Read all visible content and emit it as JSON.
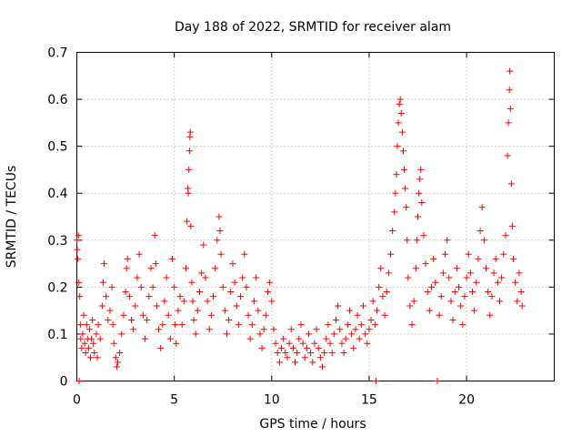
{
  "chart_data": {
    "type": "scatter",
    "title": "Day 188 of 2022, SRMTID for receiver alam",
    "xlabel": "GPS time / hours",
    "ylabel": "SRMTID / TECUs",
    "xlim": [
      0,
      24.5
    ],
    "ylim": [
      0,
      0.7
    ],
    "xticks": [
      0,
      5,
      10,
      15,
      20
    ],
    "xtick_labels": [
      "0",
      "5",
      "10",
      "15",
      "20"
    ],
    "yticks": [
      0,
      0.1,
      0.2,
      0.3,
      0.4,
      0.5,
      0.6,
      0.7
    ],
    "ytick_labels": [
      "0",
      "0.1",
      "0.2",
      "0.3",
      "0.4",
      "0.5",
      "0.6",
      "0.7"
    ],
    "grid": true,
    "marker": "+",
    "color": "#ff0000",
    "series": [
      {
        "name": "SRMTID",
        "points": [
          [
            0.0,
            0.3
          ],
          [
            0.02,
            0.28
          ],
          [
            0.05,
            0.26
          ],
          [
            0.08,
            0.31
          ],
          [
            0.1,
            0.21
          ],
          [
            0.12,
            0.0
          ],
          [
            0.15,
            0.18
          ],
          [
            0.18,
            0.12
          ],
          [
            0.2,
            0.09
          ],
          [
            0.25,
            0.07
          ],
          [
            0.3,
            0.1
          ],
          [
            0.35,
            0.14
          ],
          [
            0.4,
            0.08
          ],
          [
            0.45,
            0.06
          ],
          [
            0.5,
            0.12
          ],
          [
            0.55,
            0.09
          ],
          [
            0.6,
            0.07
          ],
          [
            0.65,
            0.11
          ],
          [
            0.7,
            0.05
          ],
          [
            0.75,
            0.09
          ],
          [
            0.8,
            0.13
          ],
          [
            0.85,
            0.08
          ],
          [
            0.9,
            0.06
          ],
          [
            1.0,
            0.1
          ],
          [
            1.05,
            0.05
          ],
          [
            1.1,
            0.12
          ],
          [
            1.2,
            0.09
          ],
          [
            1.3,
            0.16
          ],
          [
            1.35,
            0.21
          ],
          [
            1.4,
            0.25
          ],
          [
            1.5,
            0.18
          ],
          [
            1.6,
            0.13
          ],
          [
            1.7,
            0.15
          ],
          [
            1.8,
            0.2
          ],
          [
            1.85,
            0.12
          ],
          [
            1.9,
            0.08
          ],
          [
            2.0,
            0.05
          ],
          [
            2.05,
            0.03
          ],
          [
            2.1,
            0.04
          ],
          [
            2.2,
            0.06
          ],
          [
            2.3,
            0.1
          ],
          [
            2.4,
            0.14
          ],
          [
            2.5,
            0.19
          ],
          [
            2.55,
            0.24
          ],
          [
            2.6,
            0.26
          ],
          [
            2.7,
            0.18
          ],
          [
            2.8,
            0.13
          ],
          [
            2.9,
            0.11
          ],
          [
            3.0,
            0.16
          ],
          [
            3.1,
            0.22
          ],
          [
            3.2,
            0.27
          ],
          [
            3.3,
            0.2
          ],
          [
            3.4,
            0.14
          ],
          [
            3.5,
            0.09
          ],
          [
            3.6,
            0.13
          ],
          [
            3.7,
            0.18
          ],
          [
            3.8,
            0.24
          ],
          [
            3.9,
            0.2
          ],
          [
            4.0,
            0.31
          ],
          [
            4.05,
            0.25
          ],
          [
            4.1,
            0.16
          ],
          [
            4.2,
            0.11
          ],
          [
            4.3,
            0.07
          ],
          [
            4.4,
            0.12
          ],
          [
            4.5,
            0.17
          ],
          [
            4.6,
            0.22
          ],
          [
            4.7,
            0.14
          ],
          [
            4.8,
            0.09
          ],
          [
            4.9,
            0.26
          ],
          [
            5.0,
            0.2
          ],
          [
            5.05,
            0.12
          ],
          [
            5.1,
            0.08
          ],
          [
            5.2,
            0.15
          ],
          [
            5.3,
            0.18
          ],
          [
            5.4,
            0.12
          ],
          [
            5.5,
            0.17
          ],
          [
            5.6,
            0.24
          ],
          [
            5.65,
            0.34
          ],
          [
            5.7,
            0.41
          ],
          [
            5.72,
            0.4
          ],
          [
            5.75,
            0.45
          ],
          [
            5.78,
            0.49
          ],
          [
            5.8,
            0.52
          ],
          [
            5.82,
            0.53
          ],
          [
            5.85,
            0.33
          ],
          [
            5.9,
            0.21
          ],
          [
            5.95,
            0.17
          ],
          [
            6.0,
            0.13
          ],
          [
            6.1,
            0.1
          ],
          [
            6.2,
            0.15
          ],
          [
            6.3,
            0.19
          ],
          [
            6.4,
            0.23
          ],
          [
            6.5,
            0.29
          ],
          [
            6.6,
            0.22
          ],
          [
            6.7,
            0.17
          ],
          [
            6.8,
            0.11
          ],
          [
            6.9,
            0.14
          ],
          [
            7.0,
            0.18
          ],
          [
            7.1,
            0.24
          ],
          [
            7.2,
            0.3
          ],
          [
            7.3,
            0.35
          ],
          [
            7.35,
            0.32
          ],
          [
            7.4,
            0.27
          ],
          [
            7.5,
            0.2
          ],
          [
            7.6,
            0.15
          ],
          [
            7.7,
            0.1
          ],
          [
            7.8,
            0.13
          ],
          [
            7.9,
            0.19
          ],
          [
            8.0,
            0.25
          ],
          [
            8.1,
            0.21
          ],
          [
            8.2,
            0.16
          ],
          [
            8.3,
            0.12
          ],
          [
            8.4,
            0.18
          ],
          [
            8.5,
            0.22
          ],
          [
            8.6,
            0.27
          ],
          [
            8.7,
            0.2
          ],
          [
            8.8,
            0.14
          ],
          [
            8.9,
            0.09
          ],
          [
            9.0,
            0.12
          ],
          [
            9.1,
            0.17
          ],
          [
            9.2,
            0.22
          ],
          [
            9.3,
            0.15
          ],
          [
            9.4,
            0.1
          ],
          [
            9.5,
            0.07
          ],
          [
            9.6,
            0.11
          ],
          [
            9.7,
            0.14
          ],
          [
            9.8,
            0.19
          ],
          [
            9.9,
            0.21
          ],
          [
            10.0,
            0.17
          ],
          [
            10.1,
            0.11
          ],
          [
            10.2,
            0.08
          ],
          [
            10.3,
            0.06
          ],
          [
            10.4,
            0.04
          ],
          [
            10.5,
            0.07
          ],
          [
            10.6,
            0.09
          ],
          [
            10.7,
            0.06
          ],
          [
            10.8,
            0.05
          ],
          [
            10.9,
            0.08
          ],
          [
            11.0,
            0.11
          ],
          [
            11.1,
            0.07
          ],
          [
            11.2,
            0.04
          ],
          [
            11.3,
            0.06
          ],
          [
            11.4,
            0.09
          ],
          [
            11.5,
            0.12
          ],
          [
            11.6,
            0.08
          ],
          [
            11.7,
            0.05
          ],
          [
            11.8,
            0.07
          ],
          [
            11.9,
            0.1
          ],
          [
            12.0,
            0.06
          ],
          [
            12.1,
            0.04
          ],
          [
            12.2,
            0.08
          ],
          [
            12.3,
            0.11
          ],
          [
            12.4,
            0.07
          ],
          [
            12.5,
            0.05
          ],
          [
            12.6,
            0.03
          ],
          [
            12.7,
            0.06
          ],
          [
            12.8,
            0.09
          ],
          [
            12.9,
            0.12
          ],
          [
            13.0,
            0.08
          ],
          [
            13.1,
            0.06
          ],
          [
            13.2,
            0.1
          ],
          [
            13.3,
            0.13
          ],
          [
            13.4,
            0.16
          ],
          [
            13.5,
            0.11
          ],
          [
            13.6,
            0.08
          ],
          [
            13.7,
            0.06
          ],
          [
            13.8,
            0.09
          ],
          [
            13.9,
            0.12
          ],
          [
            14.0,
            0.15
          ],
          [
            14.1,
            0.1
          ],
          [
            14.2,
            0.07
          ],
          [
            14.3,
            0.11
          ],
          [
            14.4,
            0.14
          ],
          [
            14.5,
            0.09
          ],
          [
            14.6,
            0.12
          ],
          [
            14.7,
            0.16
          ],
          [
            14.8,
            0.1
          ],
          [
            14.9,
            0.08
          ],
          [
            15.0,
            0.11
          ],
          [
            15.1,
            0.13
          ],
          [
            15.2,
            0.17
          ],
          [
            15.3,
            0.12
          ],
          [
            15.35,
            0.0
          ],
          [
            15.4,
            0.15
          ],
          [
            15.5,
            0.2
          ],
          [
            15.6,
            0.24
          ],
          [
            15.7,
            0.18
          ],
          [
            15.8,
            0.14
          ],
          [
            15.9,
            0.19
          ],
          [
            16.0,
            0.23
          ],
          [
            16.1,
            0.27
          ],
          [
            16.2,
            0.32
          ],
          [
            16.3,
            0.36
          ],
          [
            16.35,
            0.4
          ],
          [
            16.4,
            0.44
          ],
          [
            16.45,
            0.5
          ],
          [
            16.5,
            0.55
          ],
          [
            16.55,
            0.59
          ],
          [
            16.6,
            0.6
          ],
          [
            16.65,
            0.57
          ],
          [
            16.7,
            0.53
          ],
          [
            16.75,
            0.49
          ],
          [
            16.8,
            0.45
          ],
          [
            16.85,
            0.41
          ],
          [
            16.9,
            0.37
          ],
          [
            16.95,
            0.3
          ],
          [
            17.0,
            0.22
          ],
          [
            17.1,
            0.16
          ],
          [
            17.2,
            0.12
          ],
          [
            17.3,
            0.17
          ],
          [
            17.4,
            0.24
          ],
          [
            17.45,
            0.3
          ],
          [
            17.5,
            0.35
          ],
          [
            17.55,
            0.4
          ],
          [
            17.6,
            0.43
          ],
          [
            17.65,
            0.45
          ],
          [
            17.7,
            0.38
          ],
          [
            17.8,
            0.31
          ],
          [
            17.9,
            0.25
          ],
          [
            18.0,
            0.19
          ],
          [
            18.1,
            0.15
          ],
          [
            18.2,
            0.2
          ],
          [
            18.3,
            0.26
          ],
          [
            18.4,
            0.21
          ],
          [
            18.5,
            0.0
          ],
          [
            18.6,
            0.14
          ],
          [
            18.7,
            0.18
          ],
          [
            18.8,
            0.23
          ],
          [
            18.9,
            0.27
          ],
          [
            19.0,
            0.3
          ],
          [
            19.1,
            0.22
          ],
          [
            19.2,
            0.17
          ],
          [
            19.3,
            0.13
          ],
          [
            19.4,
            0.19
          ],
          [
            19.5,
            0.24
          ],
          [
            19.6,
            0.2
          ],
          [
            19.7,
            0.16
          ],
          [
            19.8,
            0.12
          ],
          [
            19.9,
            0.18
          ],
          [
            20.0,
            0.22
          ],
          [
            20.1,
            0.27
          ],
          [
            20.2,
            0.23
          ],
          [
            20.3,
            0.19
          ],
          [
            20.4,
            0.15
          ],
          [
            20.5,
            0.21
          ],
          [
            20.6,
            0.26
          ],
          [
            20.7,
            0.32
          ],
          [
            20.8,
            0.37
          ],
          [
            20.9,
            0.3
          ],
          [
            21.0,
            0.24
          ],
          [
            21.1,
            0.19
          ],
          [
            21.2,
            0.14
          ],
          [
            21.3,
            0.18
          ],
          [
            21.4,
            0.23
          ],
          [
            21.5,
            0.26
          ],
          [
            21.6,
            0.21
          ],
          [
            21.7,
            0.17
          ],
          [
            21.8,
            0.22
          ],
          [
            21.9,
            0.27
          ],
          [
            22.0,
            0.31
          ],
          [
            22.1,
            0.48
          ],
          [
            22.15,
            0.55
          ],
          [
            22.2,
            0.62
          ],
          [
            22.22,
            0.66
          ],
          [
            22.25,
            0.58
          ],
          [
            22.3,
            0.42
          ],
          [
            22.35,
            0.33
          ],
          [
            22.4,
            0.26
          ],
          [
            22.5,
            0.21
          ],
          [
            22.6,
            0.17
          ],
          [
            22.7,
            0.23
          ],
          [
            22.8,
            0.19
          ],
          [
            22.85,
            0.16
          ]
        ]
      }
    ]
  }
}
